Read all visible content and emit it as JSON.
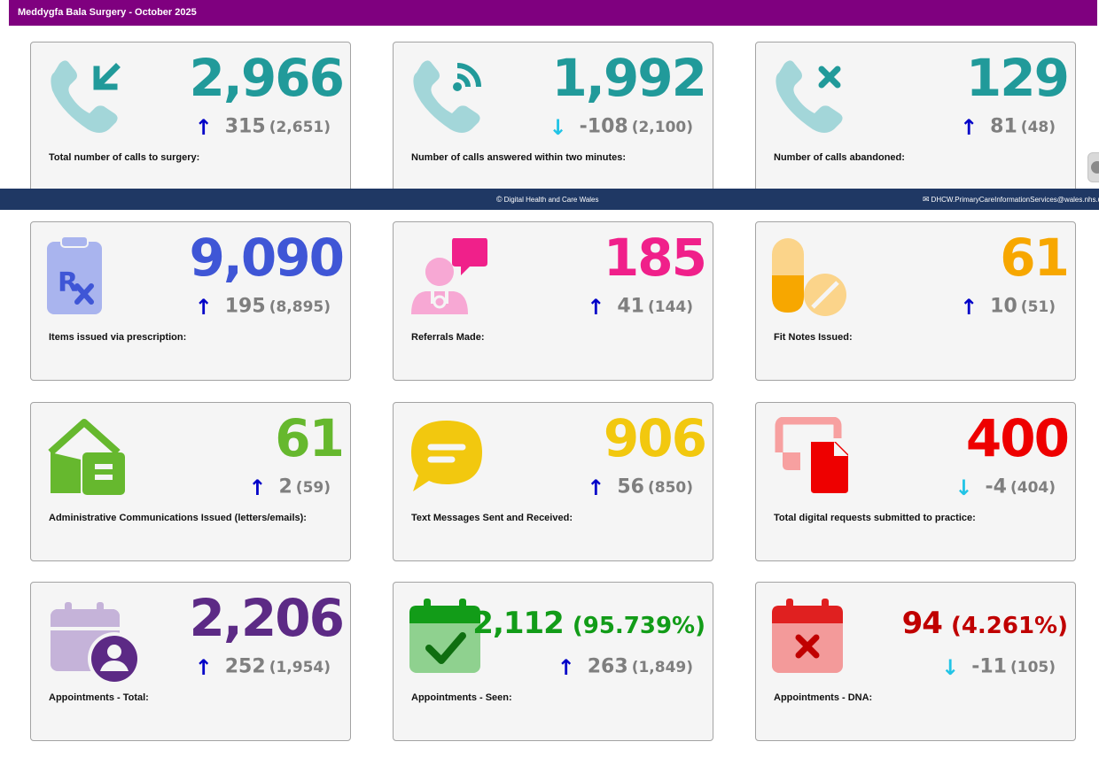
{
  "header": {
    "title": "Meddygfa Bala Surgery - October 2025"
  },
  "footer": {
    "center_glyph": "©",
    "center_text": "Digital Health and Care Wales",
    "right_glyph": "✉",
    "right_text": "DHCW.PrimaryCareInformationServices@wales.nhs.u"
  },
  "colors": {
    "header_bg": "#7f007f",
    "footer_bg": "#1f3864",
    "teal": "#219a9a",
    "blue": "#3f56d6",
    "pink": "#f0208a",
    "orange": "#f7a700",
    "green_light": "#66b82e",
    "yellow": "#f2c80f",
    "red": "#ee0000",
    "purple": "#5c2a85",
    "green": "#129c18",
    "dark_red": "#c00000",
    "arrow_up": "#0000c8",
    "arrow_down": "#22c4e6"
  },
  "cards": [
    {
      "label": "Total number of calls to surgery:",
      "value": "2,966",
      "direction": "up",
      "arrow": "↑",
      "change": "315",
      "previous": "(2,651)",
      "icon": "phone-incoming-icon",
      "color": "#219a9a"
    },
    {
      "label": "Number of calls answered within two minutes:",
      "value": "1,992",
      "direction": "down",
      "arrow": "↓",
      "change": "-108",
      "previous": "(2,100)",
      "icon": "phone-answered-icon",
      "color": "#219a9a"
    },
    {
      "label": "Number of calls abandoned:",
      "value": "129",
      "direction": "up",
      "arrow": "↑",
      "change": "81",
      "previous": "(48)",
      "icon": "phone-missed-icon",
      "color": "#219a9a"
    },
    {
      "label": "Items issued via prescription:",
      "value": "9,090",
      "direction": "up",
      "arrow": "↑",
      "change": "195",
      "previous": "(8,895)",
      "icon": "prescription-icon",
      "color": "#3f56d6"
    },
    {
      "label": "Referrals Made:",
      "value": "185",
      "direction": "up",
      "arrow": "↑",
      "change": "41",
      "previous": "(144)",
      "icon": "referral-icon",
      "color": "#f0208a"
    },
    {
      "label": "Fit Notes Issued:",
      "value": "61",
      "direction": "up",
      "arrow": "↑",
      "change": "10",
      "previous": "(51)",
      "icon": "pills-icon",
      "color": "#f7a700"
    },
    {
      "label": "Administrative Communications Issued (letters/emails):",
      "value": "61",
      "direction": "up",
      "arrow": "↑",
      "change": "2",
      "previous": "(59)",
      "icon": "house-document-icon",
      "color": "#66b82e"
    },
    {
      "label": "Text Messages Sent and Received:",
      "value": "906",
      "direction": "up",
      "arrow": "↑",
      "change": "56",
      "previous": "(850)",
      "icon": "chat-bubble-icon",
      "color": "#f2c80f"
    },
    {
      "label": "Total digital requests submitted to practice:",
      "value": "400",
      "direction": "down",
      "arrow": "↓",
      "change": "-4",
      "previous": "(404)",
      "icon": "digital-request-icon",
      "color": "#ee0000"
    },
    {
      "label": "Appointments - Total:",
      "value": "2,206",
      "direction": "up",
      "arrow": "↑",
      "change": "252",
      "previous": "(1,954)",
      "icon": "calendar-user-icon",
      "color": "#5c2a85"
    },
    {
      "label": "Appointments - Seen:",
      "value": "2,112",
      "percent": "(95.739%)",
      "direction": "up",
      "arrow": "↑",
      "change": "263",
      "previous": "(1,849)",
      "icon": "calendar-check-icon",
      "color": "#129c18"
    },
    {
      "label": "Appointments - DNA:",
      "value": "94",
      "percent": "(4.261%)",
      "direction": "down",
      "arrow": "↓",
      "change": "-11",
      "previous": "(105)",
      "icon": "calendar-cross-icon",
      "color": "#c00000"
    }
  ]
}
